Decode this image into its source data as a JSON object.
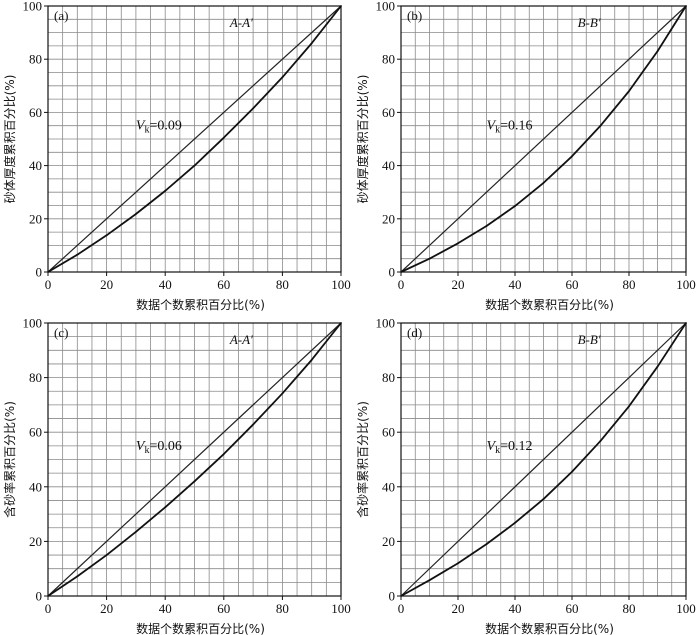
{
  "chart_data": [
    {
      "type": "line",
      "panel_label": "(a)",
      "section": "A-A′",
      "vk_symbol": "V",
      "vk_sub": "k",
      "vk_value": "=0.09",
      "xlabel": "数据个数累积百分比(%)",
      "ylabel": "砂体厚度累积百分比(%)",
      "xlim": [
        0,
        100
      ],
      "ylim": [
        0,
        100
      ],
      "xticks": [
        0,
        20,
        40,
        60,
        80,
        100
      ],
      "yticks": [
        0,
        20,
        40,
        60,
        80,
        100
      ],
      "grid": true,
      "series": [
        {
          "x": [
            0,
            100
          ],
          "y": [
            0,
            100
          ]
        },
        {
          "x": [
            0,
            10,
            20,
            30,
            40,
            50,
            60,
            70,
            80,
            90,
            100
          ],
          "y": [
            0,
            6.5,
            13.8,
            21.8,
            30.5,
            40.0,
            50.5,
            61.5,
            73.2,
            86.0,
            100
          ]
        }
      ]
    },
    {
      "type": "line",
      "panel_label": "(b)",
      "section": "B-B′",
      "vk_symbol": "V",
      "vk_sub": "k",
      "vk_value": "=0.16",
      "xlabel": "数据个数累积百分比(%)",
      "ylabel": "砂体厚度累积百分比(%)",
      "xlim": [
        0,
        100
      ],
      "ylim": [
        0,
        100
      ],
      "xticks": [
        0,
        20,
        40,
        60,
        80,
        100
      ],
      "yticks": [
        0,
        20,
        40,
        60,
        80,
        100
      ],
      "grid": true,
      "series": [
        {
          "x": [
            0,
            100
          ],
          "y": [
            0,
            100
          ]
        },
        {
          "x": [
            0,
            10,
            20,
            30,
            40,
            50,
            60,
            70,
            80,
            90,
            100
          ],
          "y": [
            0,
            5.0,
            10.8,
            17.3,
            24.8,
            33.5,
            43.5,
            55.0,
            68.0,
            83.0,
            100
          ]
        }
      ]
    },
    {
      "type": "line",
      "panel_label": "(c)",
      "section": "A-A′",
      "vk_symbol": "V",
      "vk_sub": "k",
      "vk_value": "=0.06",
      "xlabel": "数据个数累积百分比(%)",
      "ylabel": "含砂率累积百分比(%)",
      "xlim": [
        0,
        100
      ],
      "ylim": [
        0,
        100
      ],
      "xticks": [
        0,
        20,
        40,
        60,
        80,
        100
      ],
      "yticks": [
        0,
        20,
        40,
        60,
        80,
        100
      ],
      "grid": true,
      "series": [
        {
          "x": [
            0,
            100
          ],
          "y": [
            0,
            100
          ]
        },
        {
          "x": [
            0,
            10,
            20,
            30,
            40,
            50,
            60,
            70,
            80,
            90,
            100
          ],
          "y": [
            0,
            7.2,
            15.0,
            23.5,
            32.5,
            42.0,
            52.0,
            62.8,
            74.2,
            86.5,
            100
          ]
        }
      ]
    },
    {
      "type": "line",
      "panel_label": "(d)",
      "section": "B-B′",
      "vk_symbol": "V",
      "vk_sub": "k",
      "vk_value": "=0.12",
      "xlabel": "数据个数累积百分比(%)",
      "ylabel": "含砂率累积百分比(%)",
      "xlim": [
        0,
        100
      ],
      "ylim": [
        0,
        100
      ],
      "xticks": [
        0,
        20,
        40,
        60,
        80,
        100
      ],
      "yticks": [
        0,
        20,
        40,
        60,
        80,
        100
      ],
      "grid": true,
      "series": [
        {
          "x": [
            0,
            100
          ],
          "y": [
            0,
            100
          ]
        },
        {
          "x": [
            0,
            10,
            20,
            30,
            40,
            50,
            60,
            70,
            80,
            90,
            100
          ],
          "y": [
            0,
            5.8,
            12.0,
            19.0,
            26.8,
            35.5,
            45.5,
            56.8,
            69.5,
            84.0,
            100
          ]
        }
      ]
    }
  ]
}
